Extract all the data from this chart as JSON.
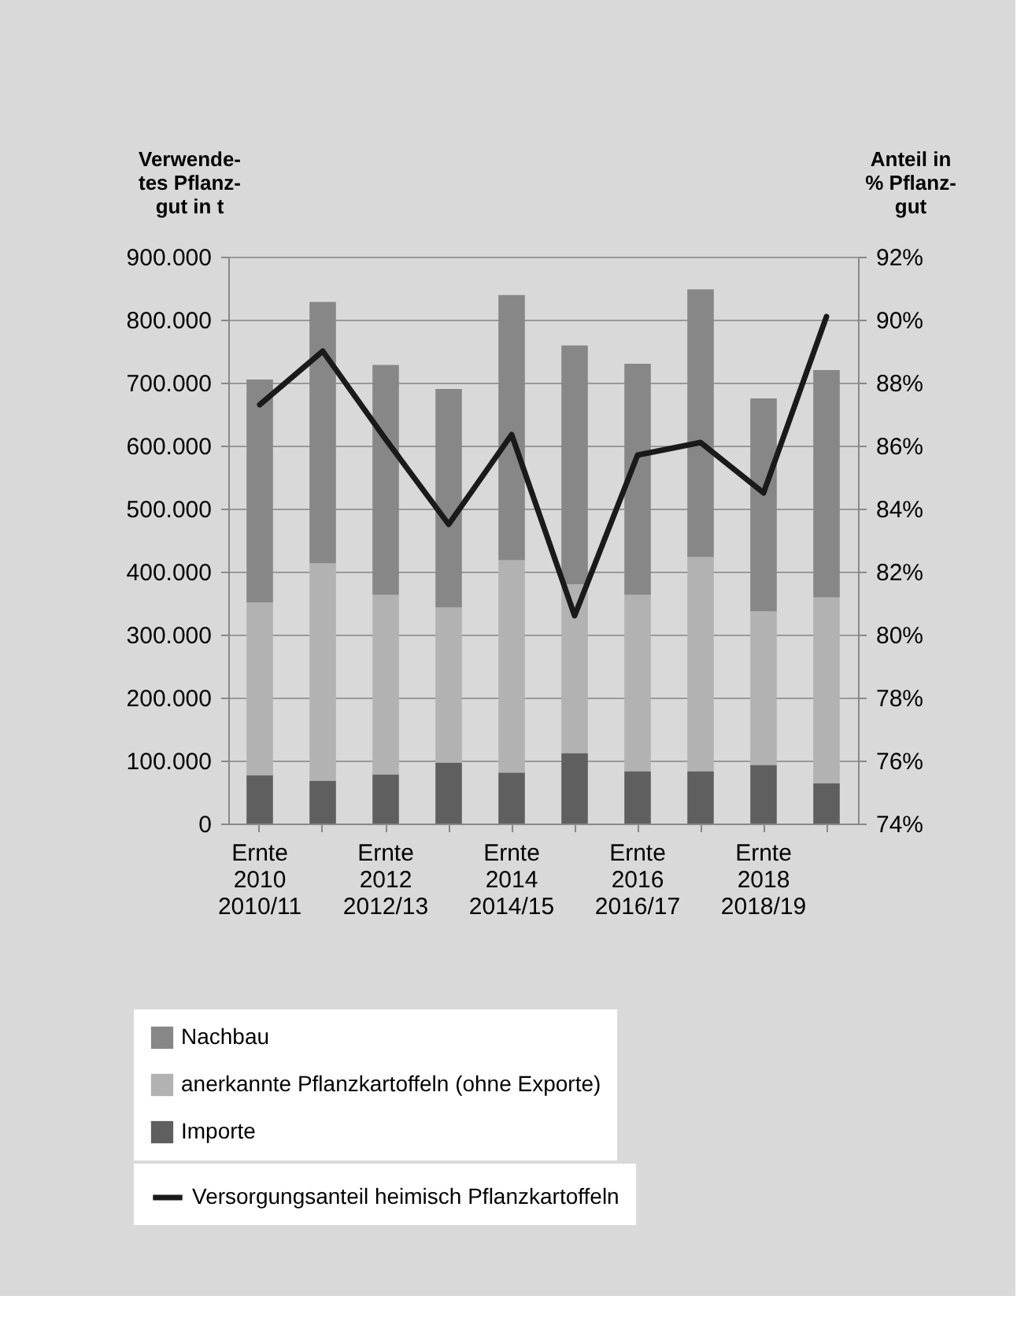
{
  "chart_data": {
    "type": "bar",
    "stacked": true,
    "categories": [
      "Ernte\n2010\n2010/11",
      null,
      "Ernte\n2012\n2012/13",
      null,
      "Ernte\n2014\n2014/15",
      null,
      "Ernte\n2016\n2016/17",
      null,
      "Ernte\n2018\n2018/19",
      null
    ],
    "ylabel": "Verwende-\ntes Pflanz-\ngut in t",
    "y2label": "Anteil in\n% Pflanz-\ngut",
    "series": [
      {
        "name": "Importe",
        "color": "#5f5f5f",
        "values": [
          77000,
          68000,
          78000,
          97000,
          81000,
          112000,
          83000,
          83000,
          93000,
          64000
        ]
      },
      {
        "name": "anerkannte Pflanzkartoffeln (ohne Exporte)",
        "color": "#b2b2b2",
        "values": [
          274000,
          345000,
          285000,
          246000,
          337000,
          268000,
          280000,
          340000,
          244000,
          295000
        ]
      },
      {
        "name": "Nachbau",
        "color": "#878787",
        "values": [
          354000,
          415000,
          365000,
          347000,
          421000,
          379000,
          367000,
          425000,
          338000,
          361000
        ]
      },
      {
        "name": "Versorgungsanteil heimisch Pflanzkartoffeln",
        "type": "line",
        "axis": "y2",
        "color": "#1a1a1a",
        "values": [
          87.3,
          89.0,
          86.2,
          83.5,
          86.35,
          80.6,
          85.7,
          86.1,
          84.5,
          90.1
        ]
      }
    ],
    "ylim": [
      0,
      900000
    ],
    "yticks": [
      0,
      {
        "value": 100000,
        "label": "100.000"
      },
      {
        "value": 200000,
        "label": "200.000"
      },
      {
        "value": 300000,
        "label": "300.000"
      },
      {
        "value": 400000,
        "label": "400.000"
      },
      {
        "value": 500000,
        "label": "500.000"
      },
      {
        "value": 600000,
        "label": "600.000"
      },
      {
        "value": 700000,
        "label": "700.000"
      },
      {
        "value": 800000,
        "label": "800.000"
      },
      {
        "value": 900000,
        "label": "900.000"
      }
    ],
    "y2lim": [
      74,
      92
    ],
    "y2ticks": [
      {
        "value": 74,
        "label": "74%"
      },
      {
        "value": 76,
        "label": "76%"
      },
      {
        "value": 78,
        "label": "78%"
      },
      {
        "value": 80,
        "label": "80%"
      },
      {
        "value": 82,
        "label": "82%"
      },
      {
        "value": 84,
        "label": "84%"
      },
      {
        "value": 86,
        "label": "86%"
      },
      {
        "value": 88,
        "label": "88%"
      },
      {
        "value": 90,
        "label": "90%"
      },
      {
        "value": 92,
        "label": "92%"
      }
    ],
    "grid": "y",
    "legend": "bottom"
  }
}
